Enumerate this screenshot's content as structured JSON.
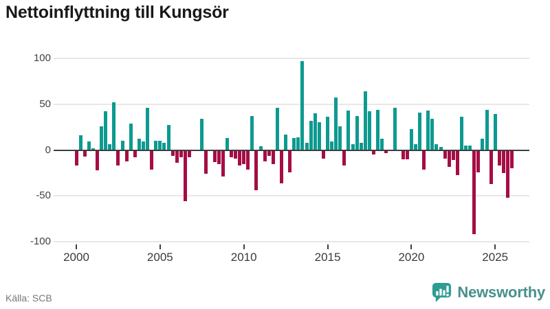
{
  "title": "Nettoinflyttning till Kungsör",
  "source": "Källa: SCB",
  "brand": {
    "name": "Newsworthy",
    "icon": "bar-chart-speech-bubble-icon",
    "icon_color": "#2e9c93",
    "text_color": "#46908c"
  },
  "chart_data": {
    "type": "bar",
    "title": "Nettoinflyttning till Kungsör",
    "period": "quarterly",
    "x_start": "2000 Q1",
    "x_end": "2026 Q1",
    "x_tick_labels": [
      "2000",
      "2005",
      "2010",
      "2015",
      "2020",
      "2025"
    ],
    "y_tick_labels": [
      "100",
      "50",
      "0",
      "-50",
      "-100"
    ],
    "y_ticks": [
      100,
      50,
      0,
      -50,
      -100
    ],
    "ylim": [
      -100,
      100
    ],
    "grid": "horizontal",
    "legend": "none",
    "colors": {
      "positive": "#0d9a90",
      "negative": "#a50d45"
    },
    "values": [
      -17,
      16,
      -7,
      9,
      2,
      -22,
      26,
      42,
      6,
      52,
      -17,
      10,
      -12,
      29,
      -8,
      12,
      9,
      46,
      -21,
      10,
      10,
      8,
      27,
      -6,
      -14,
      -8,
      -56,
      -8,
      0,
      0,
      34,
      -26,
      0,
      -13,
      -15,
      -29,
      13,
      -8,
      -9,
      -17,
      -15,
      -21,
      37,
      -44,
      4,
      -12,
      -6,
      -15,
      46,
      -36,
      17,
      -24,
      13,
      14,
      97,
      8,
      32,
      40,
      30,
      -9,
      36,
      9,
      57,
      26,
      -17,
      43,
      6,
      37,
      8,
      64,
      42,
      -5,
      44,
      12,
      -3,
      0,
      46,
      0,
      -10,
      -10,
      23,
      6,
      41,
      -21,
      43,
      34,
      6,
      3,
      -9,
      -18,
      -11,
      -27,
      36,
      5,
      5,
      -92,
      -24,
      12,
      44,
      -37,
      39,
      -17,
      -25,
      -52,
      -20
    ]
  }
}
